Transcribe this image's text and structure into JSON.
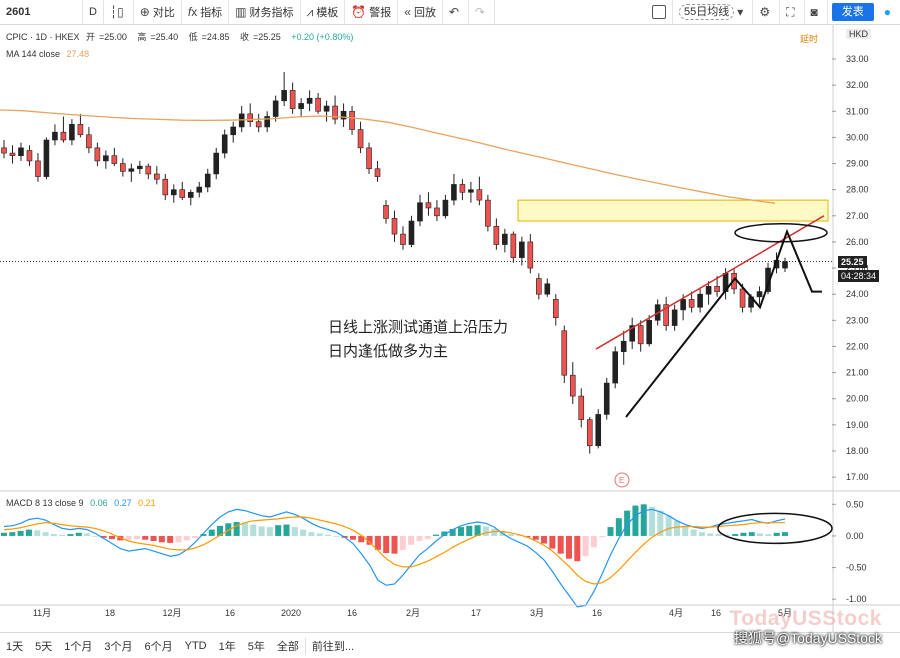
{
  "toolbar": {
    "symbol": "2601",
    "interval": "D",
    "compare": "对比",
    "indicators": "指标",
    "financials": "财务指标",
    "templates": "模板",
    "alert": "警报",
    "replay": "回放",
    "ma_label": "55日均线",
    "publish": "发表"
  },
  "header": {
    "title": "CPIC · 1D · HKEX",
    "o_label": "开",
    "o": "=25.00",
    "h_label": "高",
    "h": "=25.40",
    "l_label": "低",
    "l": "=24.85",
    "c_label": "收",
    "c": "=25.25",
    "change": "+0.20 (+0.80%)",
    "ma_label": "MA 144 close",
    "ma_value": "27.48",
    "currency": "HKD",
    "realtime": "延时"
  },
  "macd_legend": {
    "label": "MACD 8 13 close 9",
    "v1": "0.06",
    "v2": "0.27",
    "v3": "0.21"
  },
  "annotation": {
    "line1": "日线上涨测试通道上沿压力",
    "line2": "日内逢低做多为主"
  },
  "price_tags": {
    "last": "25.25",
    "countdown": "04:28:34"
  },
  "e_marker": "E",
  "bottom": {
    "ranges": [
      "1天",
      "5天",
      "1个月",
      "3个月",
      "6个月",
      "YTD",
      "1年",
      "5年",
      "全部"
    ],
    "goto": "前往到..."
  },
  "watermark": "TodayUSStock",
  "credit": "搜狐号@TodayUSStock",
  "colors": {
    "up": "#26a69a",
    "down": "#ef5350",
    "candle": "#222222",
    "ma": "#e8a25c",
    "macd_line": "#2196f3",
    "signal_line": "#ff9800",
    "zone_fill": "#fff59d",
    "channel": "#d32f2f"
  },
  "chart_data": {
    "type": "candlestick",
    "symbol": "CPIC",
    "exchange": "HKEX",
    "interval": "1D",
    "y_axis_price": [
      18,
      33
    ],
    "price_ticks": [
      "33.00",
      "32.00",
      "31.00",
      "30.00",
      "29.00",
      "28.00",
      "27.00",
      "26.00",
      "25.00",
      "24.00",
      "23.00",
      "22.00",
      "21.00",
      "20.00",
      "19.00",
      "18.00",
      "17.00"
    ],
    "x_ticks": [
      "11月",
      "18",
      "12月",
      "16",
      "2020",
      "16",
      "2月",
      "17",
      "3月",
      "16",
      "4月",
      "16",
      "5月"
    ],
    "candles": [
      {
        "o": 29.6,
        "h": 29.9,
        "l": 29.2,
        "c": 29.4
      },
      {
        "o": 29.4,
        "h": 29.7,
        "l": 29.0,
        "c": 29.3
      },
      {
        "o": 29.3,
        "h": 29.8,
        "l": 29.1,
        "c": 29.6
      },
      {
        "o": 29.5,
        "h": 29.7,
        "l": 28.9,
        "c": 29.1
      },
      {
        "o": 29.1,
        "h": 29.4,
        "l": 28.3,
        "c": 28.5
      },
      {
        "o": 28.5,
        "h": 30.0,
        "l": 28.4,
        "c": 29.9
      },
      {
        "o": 29.9,
        "h": 30.5,
        "l": 29.7,
        "c": 30.2
      },
      {
        "o": 30.2,
        "h": 30.8,
        "l": 29.8,
        "c": 29.9
      },
      {
        "o": 29.9,
        "h": 30.7,
        "l": 29.7,
        "c": 30.5
      },
      {
        "o": 30.5,
        "h": 30.9,
        "l": 30.0,
        "c": 30.1
      },
      {
        "o": 30.1,
        "h": 30.4,
        "l": 29.4,
        "c": 29.6
      },
      {
        "o": 29.6,
        "h": 29.8,
        "l": 28.9,
        "c": 29.1
      },
      {
        "o": 29.1,
        "h": 29.5,
        "l": 28.8,
        "c": 29.3
      },
      {
        "o": 29.3,
        "h": 29.6,
        "l": 28.9,
        "c": 29.0
      },
      {
        "o": 29.0,
        "h": 29.2,
        "l": 28.5,
        "c": 28.7
      },
      {
        "o": 28.7,
        "h": 29.0,
        "l": 28.3,
        "c": 28.8
      },
      {
        "o": 28.8,
        "h": 29.1,
        "l": 28.6,
        "c": 28.9
      },
      {
        "o": 28.9,
        "h": 29.0,
        "l": 28.4,
        "c": 28.6
      },
      {
        "o": 28.6,
        "h": 28.9,
        "l": 28.2,
        "c": 28.4
      },
      {
        "o": 28.4,
        "h": 28.6,
        "l": 27.6,
        "c": 27.8
      },
      {
        "o": 27.8,
        "h": 28.2,
        "l": 27.5,
        "c": 28.0
      },
      {
        "o": 28.0,
        "h": 28.3,
        "l": 27.6,
        "c": 27.7
      },
      {
        "o": 27.7,
        "h": 28.0,
        "l": 27.4,
        "c": 27.9
      },
      {
        "o": 27.9,
        "h": 28.3,
        "l": 27.7,
        "c": 28.1
      },
      {
        "o": 28.1,
        "h": 28.8,
        "l": 27.9,
        "c": 28.6
      },
      {
        "o": 28.6,
        "h": 29.6,
        "l": 28.4,
        "c": 29.4
      },
      {
        "o": 29.4,
        "h": 30.3,
        "l": 29.2,
        "c": 30.1
      },
      {
        "o": 30.1,
        "h": 30.6,
        "l": 29.8,
        "c": 30.4
      },
      {
        "o": 30.4,
        "h": 31.2,
        "l": 30.2,
        "c": 30.9
      },
      {
        "o": 30.9,
        "h": 31.3,
        "l": 30.4,
        "c": 30.6
      },
      {
        "o": 30.6,
        "h": 30.9,
        "l": 30.2,
        "c": 30.4
      },
      {
        "o": 30.4,
        "h": 31.0,
        "l": 30.2,
        "c": 30.8
      },
      {
        "o": 30.8,
        "h": 31.6,
        "l": 30.6,
        "c": 31.4
      },
      {
        "o": 31.4,
        "h": 32.5,
        "l": 31.2,
        "c": 31.8
      },
      {
        "o": 31.8,
        "h": 32.1,
        "l": 30.9,
        "c": 31.1
      },
      {
        "o": 31.1,
        "h": 31.5,
        "l": 30.8,
        "c": 31.3
      },
      {
        "o": 31.3,
        "h": 31.8,
        "l": 31.0,
        "c": 31.5
      },
      {
        "o": 31.5,
        "h": 31.7,
        "l": 30.9,
        "c": 31.0
      },
      {
        "o": 31.0,
        "h": 31.4,
        "l": 30.6,
        "c": 31.2
      },
      {
        "o": 31.2,
        "h": 31.6,
        "l": 30.5,
        "c": 30.7
      },
      {
        "o": 30.7,
        "h": 31.3,
        "l": 30.4,
        "c": 31.0
      },
      {
        "o": 31.0,
        "h": 31.2,
        "l": 30.1,
        "c": 30.3
      },
      {
        "o": 30.3,
        "h": 30.6,
        "l": 29.4,
        "c": 29.6
      },
      {
        "o": 29.6,
        "h": 29.8,
        "l": 28.6,
        "c": 28.8
      },
      {
        "o": 28.8,
        "h": 29.1,
        "l": 28.3,
        "c": 28.5
      },
      {
        "o": 27.4,
        "h": 27.6,
        "l": 26.7,
        "c": 26.9
      },
      {
        "o": 26.9,
        "h": 27.2,
        "l": 26.0,
        "c": 26.3
      },
      {
        "o": 26.3,
        "h": 26.6,
        "l": 25.7,
        "c": 25.9
      },
      {
        "o": 25.9,
        "h": 27.0,
        "l": 25.8,
        "c": 26.8
      },
      {
        "o": 26.8,
        "h": 27.8,
        "l": 26.6,
        "c": 27.5
      },
      {
        "o": 27.5,
        "h": 27.9,
        "l": 27.0,
        "c": 27.3
      },
      {
        "o": 27.3,
        "h": 27.6,
        "l": 26.8,
        "c": 27.0
      },
      {
        "o": 27.0,
        "h": 27.8,
        "l": 26.9,
        "c": 27.6
      },
      {
        "o": 27.6,
        "h": 28.6,
        "l": 27.4,
        "c": 28.2
      },
      {
        "o": 28.2,
        "h": 28.4,
        "l": 27.6,
        "c": 27.9
      },
      {
        "o": 27.9,
        "h": 28.3,
        "l": 27.5,
        "c": 28.0
      },
      {
        "o": 28.0,
        "h": 28.5,
        "l": 27.4,
        "c": 27.6
      },
      {
        "o": 27.6,
        "h": 27.8,
        "l": 26.4,
        "c": 26.6
      },
      {
        "o": 26.6,
        "h": 26.9,
        "l": 25.7,
        "c": 25.9
      },
      {
        "o": 25.9,
        "h": 26.5,
        "l": 25.6,
        "c": 26.3
      },
      {
        "o": 26.3,
        "h": 26.4,
        "l": 25.2,
        "c": 25.4
      },
      {
        "o": 25.4,
        "h": 26.2,
        "l": 25.1,
        "c": 26.0
      },
      {
        "o": 26.0,
        "h": 26.3,
        "l": 24.8,
        "c": 25.0
      },
      {
        "o": 24.6,
        "h": 24.8,
        "l": 23.8,
        "c": 24.0
      },
      {
        "o": 24.0,
        "h": 24.6,
        "l": 23.9,
        "c": 24.4
      },
      {
        "o": 23.8,
        "h": 24.0,
        "l": 22.8,
        "c": 23.1
      },
      {
        "o": 22.6,
        "h": 22.8,
        "l": 20.6,
        "c": 20.9
      },
      {
        "o": 20.9,
        "h": 21.4,
        "l": 19.8,
        "c": 20.1
      },
      {
        "o": 20.1,
        "h": 20.4,
        "l": 18.9,
        "c": 19.2
      },
      {
        "o": 19.2,
        "h": 19.3,
        "l": 17.9,
        "c": 18.2
      },
      {
        "o": 18.2,
        "h": 19.6,
        "l": 18.1,
        "c": 19.4
      },
      {
        "o": 19.4,
        "h": 20.8,
        "l": 19.2,
        "c": 20.6
      },
      {
        "o": 20.6,
        "h": 22.0,
        "l": 20.4,
        "c": 21.8
      },
      {
        "o": 21.8,
        "h": 22.6,
        "l": 21.3,
        "c": 22.2
      },
      {
        "o": 22.2,
        "h": 23.1,
        "l": 21.9,
        "c": 22.8
      },
      {
        "o": 22.8,
        "h": 23.0,
        "l": 21.8,
        "c": 22.1
      },
      {
        "o": 22.1,
        "h": 23.2,
        "l": 22.0,
        "c": 23.0
      },
      {
        "o": 23.0,
        "h": 23.8,
        "l": 22.8,
        "c": 23.6
      },
      {
        "o": 23.6,
        "h": 23.9,
        "l": 22.6,
        "c": 22.8
      },
      {
        "o": 22.8,
        "h": 23.6,
        "l": 22.6,
        "c": 23.4
      },
      {
        "o": 23.4,
        "h": 24.0,
        "l": 23.0,
        "c": 23.8
      },
      {
        "o": 23.8,
        "h": 24.1,
        "l": 23.3,
        "c": 23.5
      },
      {
        "o": 23.5,
        "h": 24.2,
        "l": 23.3,
        "c": 24.0
      },
      {
        "o": 24.0,
        "h": 24.5,
        "l": 23.6,
        "c": 24.3
      },
      {
        "o": 24.3,
        "h": 24.7,
        "l": 23.9,
        "c": 24.1
      },
      {
        "o": 24.1,
        "h": 25.0,
        "l": 23.8,
        "c": 24.8
      },
      {
        "o": 24.8,
        "h": 25.0,
        "l": 24.0,
        "c": 24.2
      },
      {
        "o": 24.2,
        "h": 24.4,
        "l": 23.3,
        "c": 23.5
      },
      {
        "o": 23.5,
        "h": 24.0,
        "l": 23.3,
        "c": 23.9
      },
      {
        "o": 23.9,
        "h": 24.3,
        "l": 23.6,
        "c": 24.1
      },
      {
        "o": 24.1,
        "h": 25.2,
        "l": 24.0,
        "c": 25.0
      },
      {
        "o": 25.0,
        "h": 25.6,
        "l": 24.8,
        "c": 25.3
      },
      {
        "o": 25.0,
        "h": 25.4,
        "l": 24.85,
        "c": 25.25
      }
    ],
    "ma144": [
      31.05,
      31.02,
      30.95,
      30.88,
      30.82,
      30.76,
      30.72,
      30.69,
      30.66,
      30.65,
      30.66,
      30.68,
      30.72,
      30.78,
      30.82,
      30.78,
      30.7,
      30.58,
      30.4,
      30.2,
      30.0,
      29.8,
      29.58,
      29.38,
      29.18,
      28.98,
      28.78,
      28.58,
      28.4,
      28.22,
      28.05,
      27.88,
      27.72,
      27.6,
      27.48
    ],
    "support_zone": {
      "low": 26.8,
      "high": 27.6
    },
    "channel_upper": [
      [
        21.9,
        27.0
      ]
    ],
    "macd": {
      "y_range": [
        -1.25,
        0.6
      ],
      "ticks": [
        "0.50",
        "0.00",
        "-0.50",
        "-1.00"
      ],
      "hist": [
        0.05,
        0.06,
        0.08,
        0.1,
        0.09,
        0.06,
        0.03,
        0.02,
        0.03,
        0.05,
        0.04,
        0.0,
        -0.03,
        -0.05,
        -0.07,
        -0.06,
        -0.05,
        -0.06,
        -0.08,
        -0.1,
        -0.11,
        -0.1,
        -0.07,
        -0.03,
        0.03,
        0.1,
        0.16,
        0.2,
        0.22,
        0.21,
        0.18,
        0.15,
        0.14,
        0.17,
        0.18,
        0.14,
        0.1,
        0.06,
        0.04,
        0.02,
        0.0,
        -0.03,
        -0.06,
        -0.1,
        -0.14,
        -0.22,
        -0.27,
        -0.28,
        -0.22,
        -0.14,
        -0.08,
        -0.05,
        0.02,
        0.07,
        0.11,
        0.14,
        0.16,
        0.17,
        0.15,
        0.11,
        0.06,
        0.03,
        0.01,
        -0.02,
        -0.06,
        -0.12,
        -0.2,
        -0.28,
        -0.36,
        -0.4,
        -0.32,
        -0.18,
        -0.02,
        0.14,
        0.28,
        0.4,
        0.48,
        0.5,
        0.46,
        0.4,
        0.32,
        0.24,
        0.16,
        0.1,
        0.06,
        0.04,
        0.03,
        0.02,
        0.03,
        0.05,
        0.06,
        0.04,
        0.03,
        0.05,
        0.06
      ],
      "macd_line": [
        0.15,
        0.16,
        0.2,
        0.26,
        0.28,
        0.25,
        0.18,
        0.12,
        0.1,
        0.12,
        0.1,
        0.04,
        -0.04,
        -0.12,
        -0.2,
        -0.24,
        -0.22,
        -0.2,
        -0.24,
        -0.28,
        -0.32,
        -0.3,
        -0.22,
        -0.1,
        0.04,
        0.18,
        0.3,
        0.38,
        0.42,
        0.4,
        0.36,
        0.32,
        0.3,
        0.34,
        0.38,
        0.34,
        0.28,
        0.2,
        0.14,
        0.1,
        0.06,
        -0.02,
        -0.12,
        -0.28,
        -0.46,
        -0.7,
        -0.78,
        -0.76,
        -0.62,
        -0.46,
        -0.3,
        -0.2,
        -0.08,
        0.02,
        0.1,
        0.16,
        0.2,
        0.22,
        0.2,
        0.14,
        0.04,
        -0.04,
        -0.1,
        -0.16,
        -0.26,
        -0.38,
        -0.56,
        -0.76,
        -0.94,
        -1.12,
        -1.1,
        -0.88,
        -0.6,
        -0.3,
        -0.04,
        0.18,
        0.32,
        0.4,
        0.42,
        0.38,
        0.32,
        0.24,
        0.18,
        0.14,
        0.12,
        0.14,
        0.18,
        0.2,
        0.22,
        0.24,
        0.26,
        0.22,
        0.2,
        0.24,
        0.27
      ],
      "signal_line": [
        0.1,
        0.11,
        0.13,
        0.16,
        0.19,
        0.21,
        0.2,
        0.18,
        0.16,
        0.15,
        0.14,
        0.12,
        0.08,
        0.03,
        -0.03,
        -0.08,
        -0.11,
        -0.13,
        -0.15,
        -0.18,
        -0.21,
        -0.22,
        -0.22,
        -0.19,
        -0.14,
        -0.07,
        0.01,
        0.09,
        0.16,
        0.21,
        0.24,
        0.25,
        0.26,
        0.27,
        0.29,
        0.3,
        0.3,
        0.28,
        0.25,
        0.22,
        0.19,
        0.15,
        0.09,
        0.01,
        -0.1,
        -0.23,
        -0.36,
        -0.45,
        -0.49,
        -0.49,
        -0.45,
        -0.4,
        -0.33,
        -0.26,
        -0.18,
        -0.11,
        -0.05,
        0.01,
        0.05,
        0.07,
        0.07,
        0.05,
        0.02,
        -0.02,
        -0.08,
        -0.15,
        -0.24,
        -0.36,
        -0.48,
        -0.62,
        -0.72,
        -0.76,
        -0.74,
        -0.66,
        -0.54,
        -0.4,
        -0.26,
        -0.13,
        -0.02,
        0.06,
        0.12,
        0.14,
        0.15,
        0.15,
        0.14,
        0.14,
        0.15,
        0.16,
        0.17,
        0.18,
        0.2,
        0.21,
        0.21,
        0.21,
        0.21
      ]
    }
  }
}
